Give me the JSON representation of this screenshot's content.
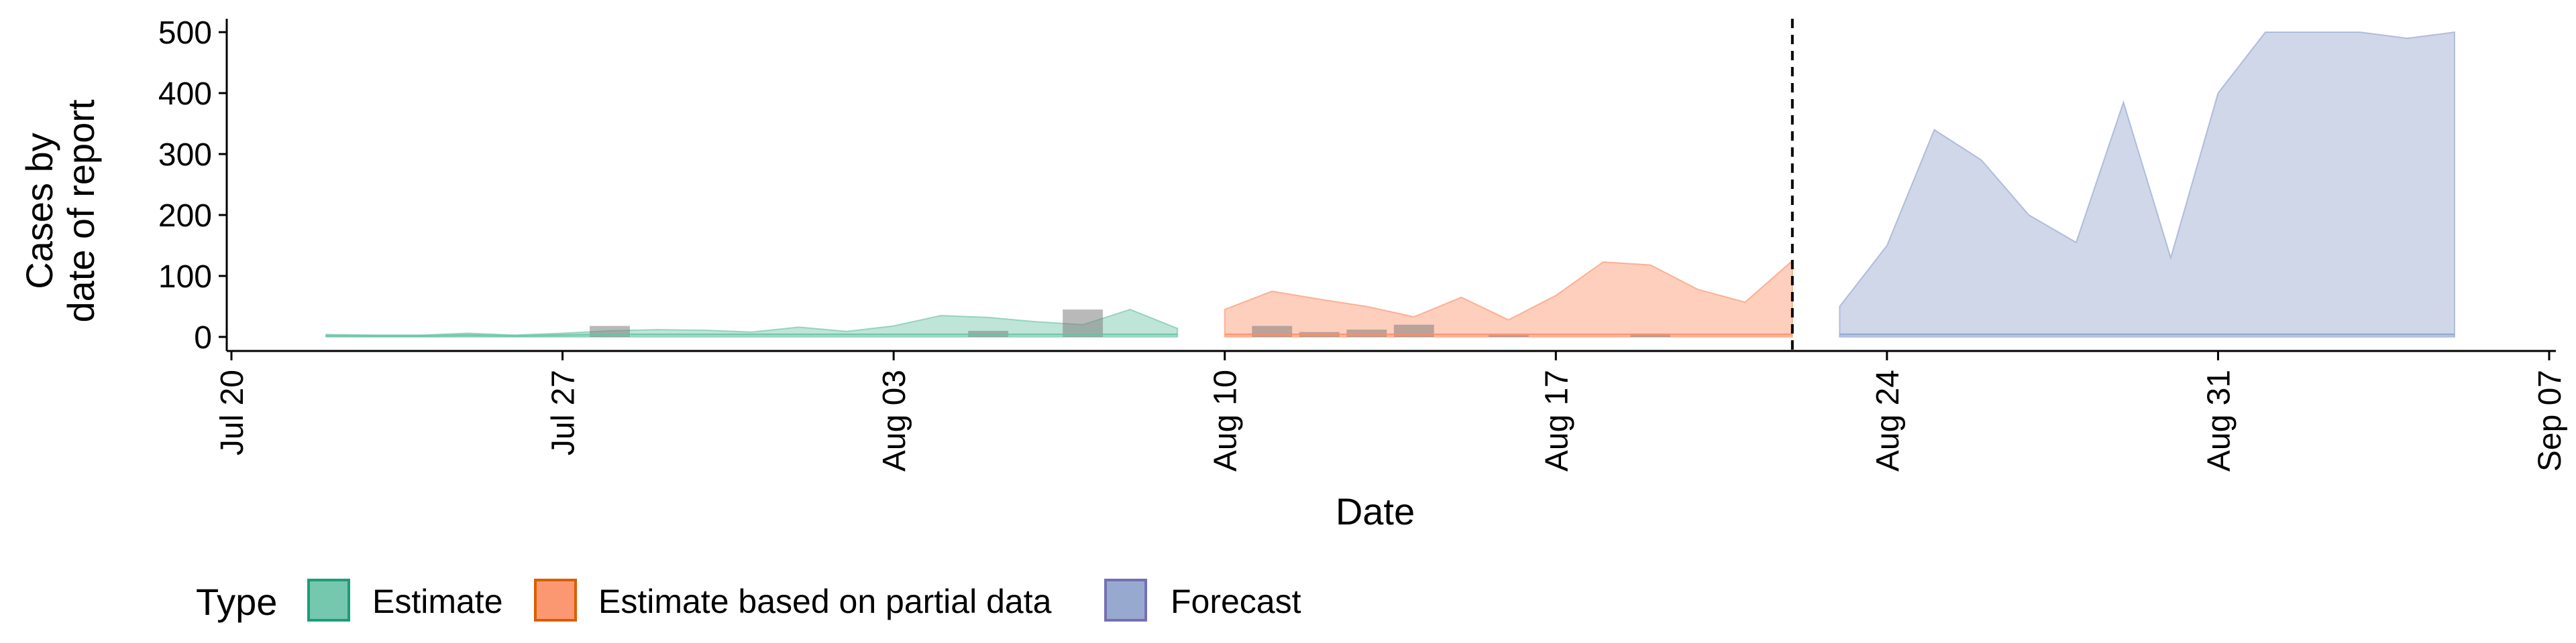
{
  "chart_data": {
    "type": "area",
    "title": "",
    "xlabel": "Date",
    "ylabel_lines": [
      "Cases by",
      "date of report"
    ],
    "xlim": [
      "2020-07-20",
      "2020-09-07"
    ],
    "ylim": [
      0,
      500
    ],
    "x_ticks": [
      "2020-07-20",
      "2020-07-27",
      "2020-08-03",
      "2020-08-10",
      "2020-08-17",
      "2020-08-24",
      "2020-08-31",
      "2020-09-07"
    ],
    "x_tick_labels": [
      "Jul 20",
      "Jul 27",
      "Aug 03",
      "Aug 10",
      "Aug 17",
      "Aug 24",
      "Aug 31",
      "Sep 07"
    ],
    "y_ticks": [
      0,
      100,
      200,
      300,
      400,
      500
    ],
    "forecast_date": "2020-08-22",
    "legend": {
      "title": "Type",
      "position": "bottom-left",
      "items": [
        {
          "label": "Estimate",
          "fill": "#66c2a5",
          "stroke": "#1b9e77"
        },
        {
          "label": "Estimate based on partial data",
          "fill": "#fc8d62",
          "stroke": "#d95f02"
        },
        {
          "label": "Forecast",
          "fill": "#8da0cb",
          "stroke": "#7570b3"
        }
      ]
    },
    "series": [
      {
        "name": "Estimate",
        "color": "#66c2a5",
        "x": [
          "2020-07-22",
          "2020-07-23",
          "2020-07-24",
          "2020-07-25",
          "2020-07-26",
          "2020-07-27",
          "2020-07-28",
          "2020-07-29",
          "2020-07-30",
          "2020-07-31",
          "2020-08-01",
          "2020-08-02",
          "2020-08-03",
          "2020-08-04",
          "2020-08-05",
          "2020-08-06",
          "2020-08-07",
          "2020-08-08",
          "2020-08-09"
        ],
        "upper": [
          4,
          3,
          3,
          6,
          3,
          6,
          10,
          12,
          11,
          8,
          16,
          9,
          18,
          35,
          32,
          25,
          20,
          45,
          14
        ],
        "lower": [
          0,
          0,
          0,
          0,
          0,
          0,
          0,
          0,
          0,
          0,
          0,
          0,
          0,
          0,
          0,
          0,
          0,
          0,
          0
        ]
      },
      {
        "name": "Estimate based on partial data",
        "color": "#fc8d62",
        "x": [
          "2020-08-10",
          "2020-08-11",
          "2020-08-12",
          "2020-08-13",
          "2020-08-14",
          "2020-08-15",
          "2020-08-16",
          "2020-08-17",
          "2020-08-18",
          "2020-08-19",
          "2020-08-20",
          "2020-08-21",
          "2020-08-22"
        ],
        "upper": [
          45,
          75,
          62,
          50,
          33,
          65,
          28,
          68,
          123,
          118,
          78,
          57,
          125
        ],
        "lower": [
          0,
          0,
          0,
          0,
          0,
          0,
          0,
          0,
          0,
          0,
          0,
          0,
          0
        ]
      },
      {
        "name": "Forecast",
        "color": "#8da0cb",
        "x": [
          "2020-08-23",
          "2020-08-24",
          "2020-08-25",
          "2020-08-26",
          "2020-08-27",
          "2020-08-28",
          "2020-08-29",
          "2020-08-30",
          "2020-08-31",
          "2020-09-01",
          "2020-09-02",
          "2020-09-03",
          "2020-09-04",
          "2020-09-05"
        ],
        "upper": [
          50,
          150,
          340,
          290,
          200,
          155,
          385,
          130,
          400,
          500,
          500,
          500,
          490,
          500
        ],
        "lower": [
          0,
          0,
          0,
          0,
          0,
          0,
          0,
          0,
          0,
          0,
          0,
          0,
          0,
          0
        ]
      }
    ],
    "reported_cases": {
      "x": [
        "2020-07-28",
        "2020-08-05",
        "2020-08-07",
        "2020-08-11",
        "2020-08-12",
        "2020-08-13",
        "2020-08-14",
        "2020-08-16",
        "2020-08-19"
      ],
      "y": [
        18,
        10,
        45,
        18,
        8,
        12,
        20,
        4,
        5
      ]
    }
  }
}
